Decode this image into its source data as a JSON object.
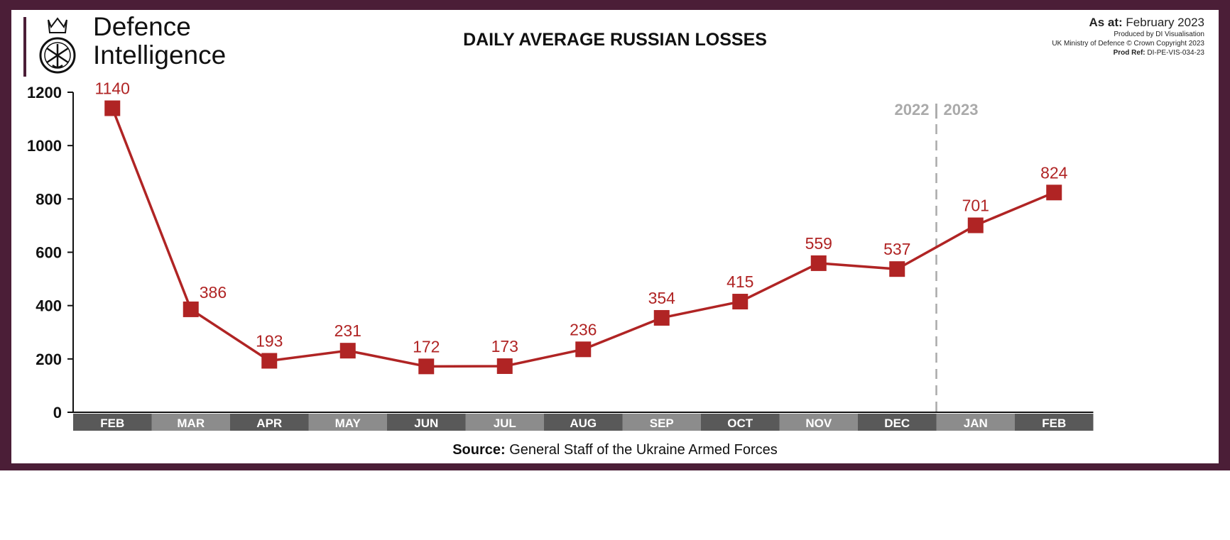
{
  "header": {
    "logo_line1": "Defence",
    "logo_line2": "Intelligence",
    "as_at_label": "As at:",
    "as_at_value": "February 2023",
    "produced_by": "Produced by DI Visualisation",
    "copyright": "UK Ministry of Defence © Crown Copyright 2023",
    "prod_ref_label": "Prod Ref:",
    "prod_ref_value": "DI-PE-VIS-034-23"
  },
  "source_label": "Source:",
  "source_value": "General Staff of the Ukraine Armed Forces",
  "colors": {
    "frame": "#4b1e37",
    "series": "#b02424",
    "band_dark": "#595959",
    "band_light": "#8c8c8c",
    "divider": "#aaaaaa"
  },
  "chart_data": {
    "type": "line",
    "title": "DAILY AVERAGE RUSSIAN LOSSES",
    "categories": [
      "FEB",
      "MAR",
      "APR",
      "MAY",
      "JUN",
      "JUL",
      "AUG",
      "SEP",
      "OCT",
      "NOV",
      "DEC",
      "JAN",
      "FEB"
    ],
    "values": [
      1140,
      386,
      193,
      231,
      172,
      173,
      236,
      354,
      415,
      559,
      537,
      701,
      824
    ],
    "data_labels": [
      "1140",
      "386",
      "193",
      "231",
      "172",
      "173",
      "236",
      "354",
      "415",
      "559",
      "537",
      "701",
      "824"
    ],
    "ylim": [
      0,
      1200
    ],
    "yticks": [
      0,
      200,
      400,
      600,
      800,
      1000,
      1200
    ],
    "grid": false,
    "marker": "square",
    "year_divider": {
      "left": "2022",
      "right": "2023",
      "between": [
        "DEC",
        "JAN"
      ]
    }
  }
}
